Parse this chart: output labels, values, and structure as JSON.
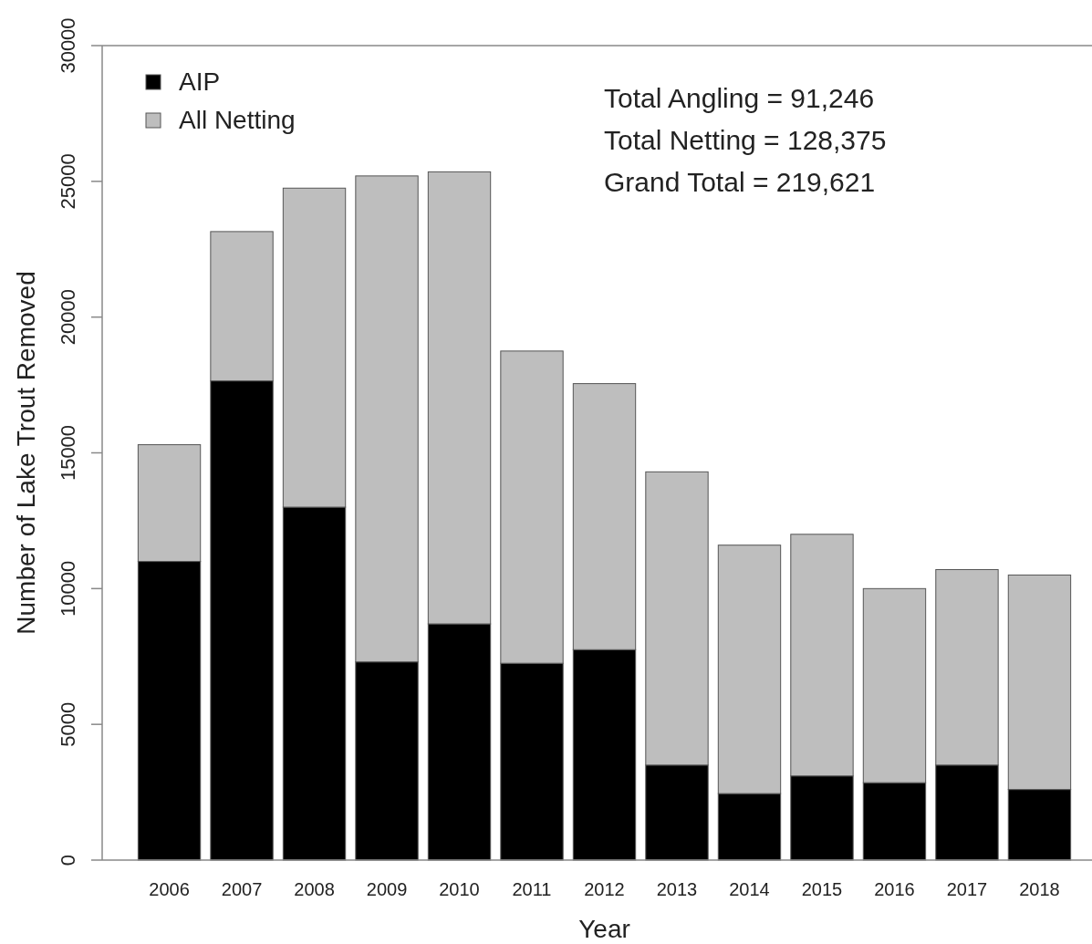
{
  "chart_data": {
    "type": "bar",
    "stacked": true,
    "xlabel": "Year",
    "ylabel": "Number of Lake Trout Removed",
    "categories": [
      "2006",
      "2007",
      "2008",
      "2009",
      "2010",
      "2011",
      "2012",
      "2013",
      "2014",
      "2015",
      "2016",
      "2017",
      "2018"
    ],
    "series": [
      {
        "name": "AIP",
        "color": "#000000",
        "values": [
          11000,
          17650,
          13000,
          7300,
          8700,
          7250,
          7750,
          3500,
          2450,
          3100,
          2850,
          3500,
          2600
        ]
      },
      {
        "name": "All Netting",
        "color": "#bebebe",
        "values": [
          4300,
          5500,
          11750,
          17900,
          16650,
          11500,
          9800,
          10800,
          9150,
          8900,
          7150,
          7200,
          7900
        ]
      }
    ],
    "ylim": [
      0,
      30000
    ],
    "yticks": [
      0,
      5000,
      10000,
      15000,
      20000,
      25000,
      30000
    ],
    "grid": false,
    "legend": "top left",
    "annotations": [
      "Total Angling = 91,246",
      "Total Netting = 128,375",
      "Grand Total = 219,621"
    ]
  }
}
